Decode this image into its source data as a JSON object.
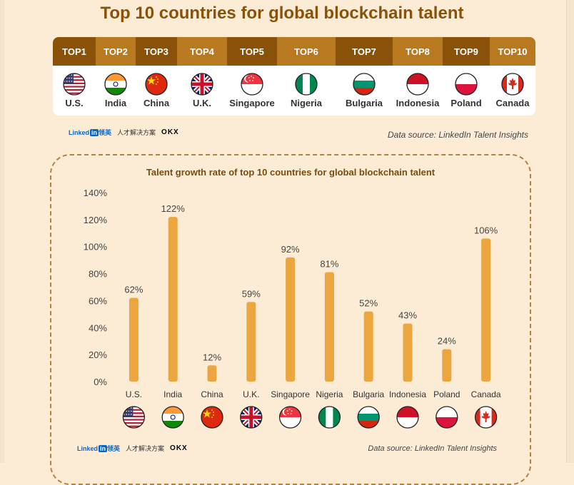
{
  "title": "Top 10 countries for global blockchain talent",
  "ranking": [
    {
      "rank": "TOP1",
      "country": "U.S.",
      "flag": "us-flag"
    },
    {
      "rank": "TOP2",
      "country": "India",
      "flag": "india-flag"
    },
    {
      "rank": "TOP3",
      "country": "China",
      "flag": "china-flag"
    },
    {
      "rank": "TOP4",
      "country": "U.K.",
      "flag": "uk-flag"
    },
    {
      "rank": "TOP5",
      "country": "Singapore",
      "flag": "singapore-flag"
    },
    {
      "rank": "TOP6",
      "country": "Nigeria",
      "flag": "nigeria-flag"
    },
    {
      "rank": "TOP7",
      "country": "Bulgaria",
      "flag": "bulgaria-flag"
    },
    {
      "rank": "TOP8",
      "country": "Indonesia",
      "flag": "indonesia-flag"
    },
    {
      "rank": "TOP9",
      "country": "Poland",
      "flag": "poland-flag"
    },
    {
      "rank": "TOP10",
      "country": "Canada",
      "flag": "canada-flag"
    }
  ],
  "colors": {
    "title": "#8a5209",
    "header_dark": "#8a5209",
    "header_light": "#b97920",
    "bar": "#eba63f",
    "panel_bg": "#fcecd6",
    "panel_border": "#b3823c"
  },
  "logos": {
    "linkedin": "Linked",
    "linkedin_box": "in",
    "linkedin_cn": "领英",
    "linkedin_tagline": "人才解决方案",
    "okx": "OKX"
  },
  "source_top": "Data source: LinkedIn Talent Insights",
  "source_bottom": "Data source: LinkedIn Talent Insights",
  "chart_data": {
    "type": "bar",
    "title": "Talent growth rate of top 10 countries for global blockchain talent",
    "categories": [
      "U.S.",
      "India",
      "China",
      "U.K.",
      "Singapore",
      "Nigeria",
      "Bulgaria",
      "Indonesia",
      "Poland",
      "Canada"
    ],
    "values": [
      62,
      122,
      12,
      59,
      92,
      81,
      52,
      43,
      24,
      106
    ],
    "value_labels": [
      "62%",
      "122%",
      "12%",
      "59%",
      "92%",
      "81%",
      "52%",
      "43%",
      "24%",
      "106%"
    ],
    "yticks": [
      "0%",
      "20%",
      "40%",
      "60%",
      "80%",
      "100%",
      "120%",
      "140%"
    ],
    "ylim": [
      0,
      140
    ],
    "grid": false,
    "legend": "none",
    "xlabel": "",
    "ylabel": ""
  }
}
